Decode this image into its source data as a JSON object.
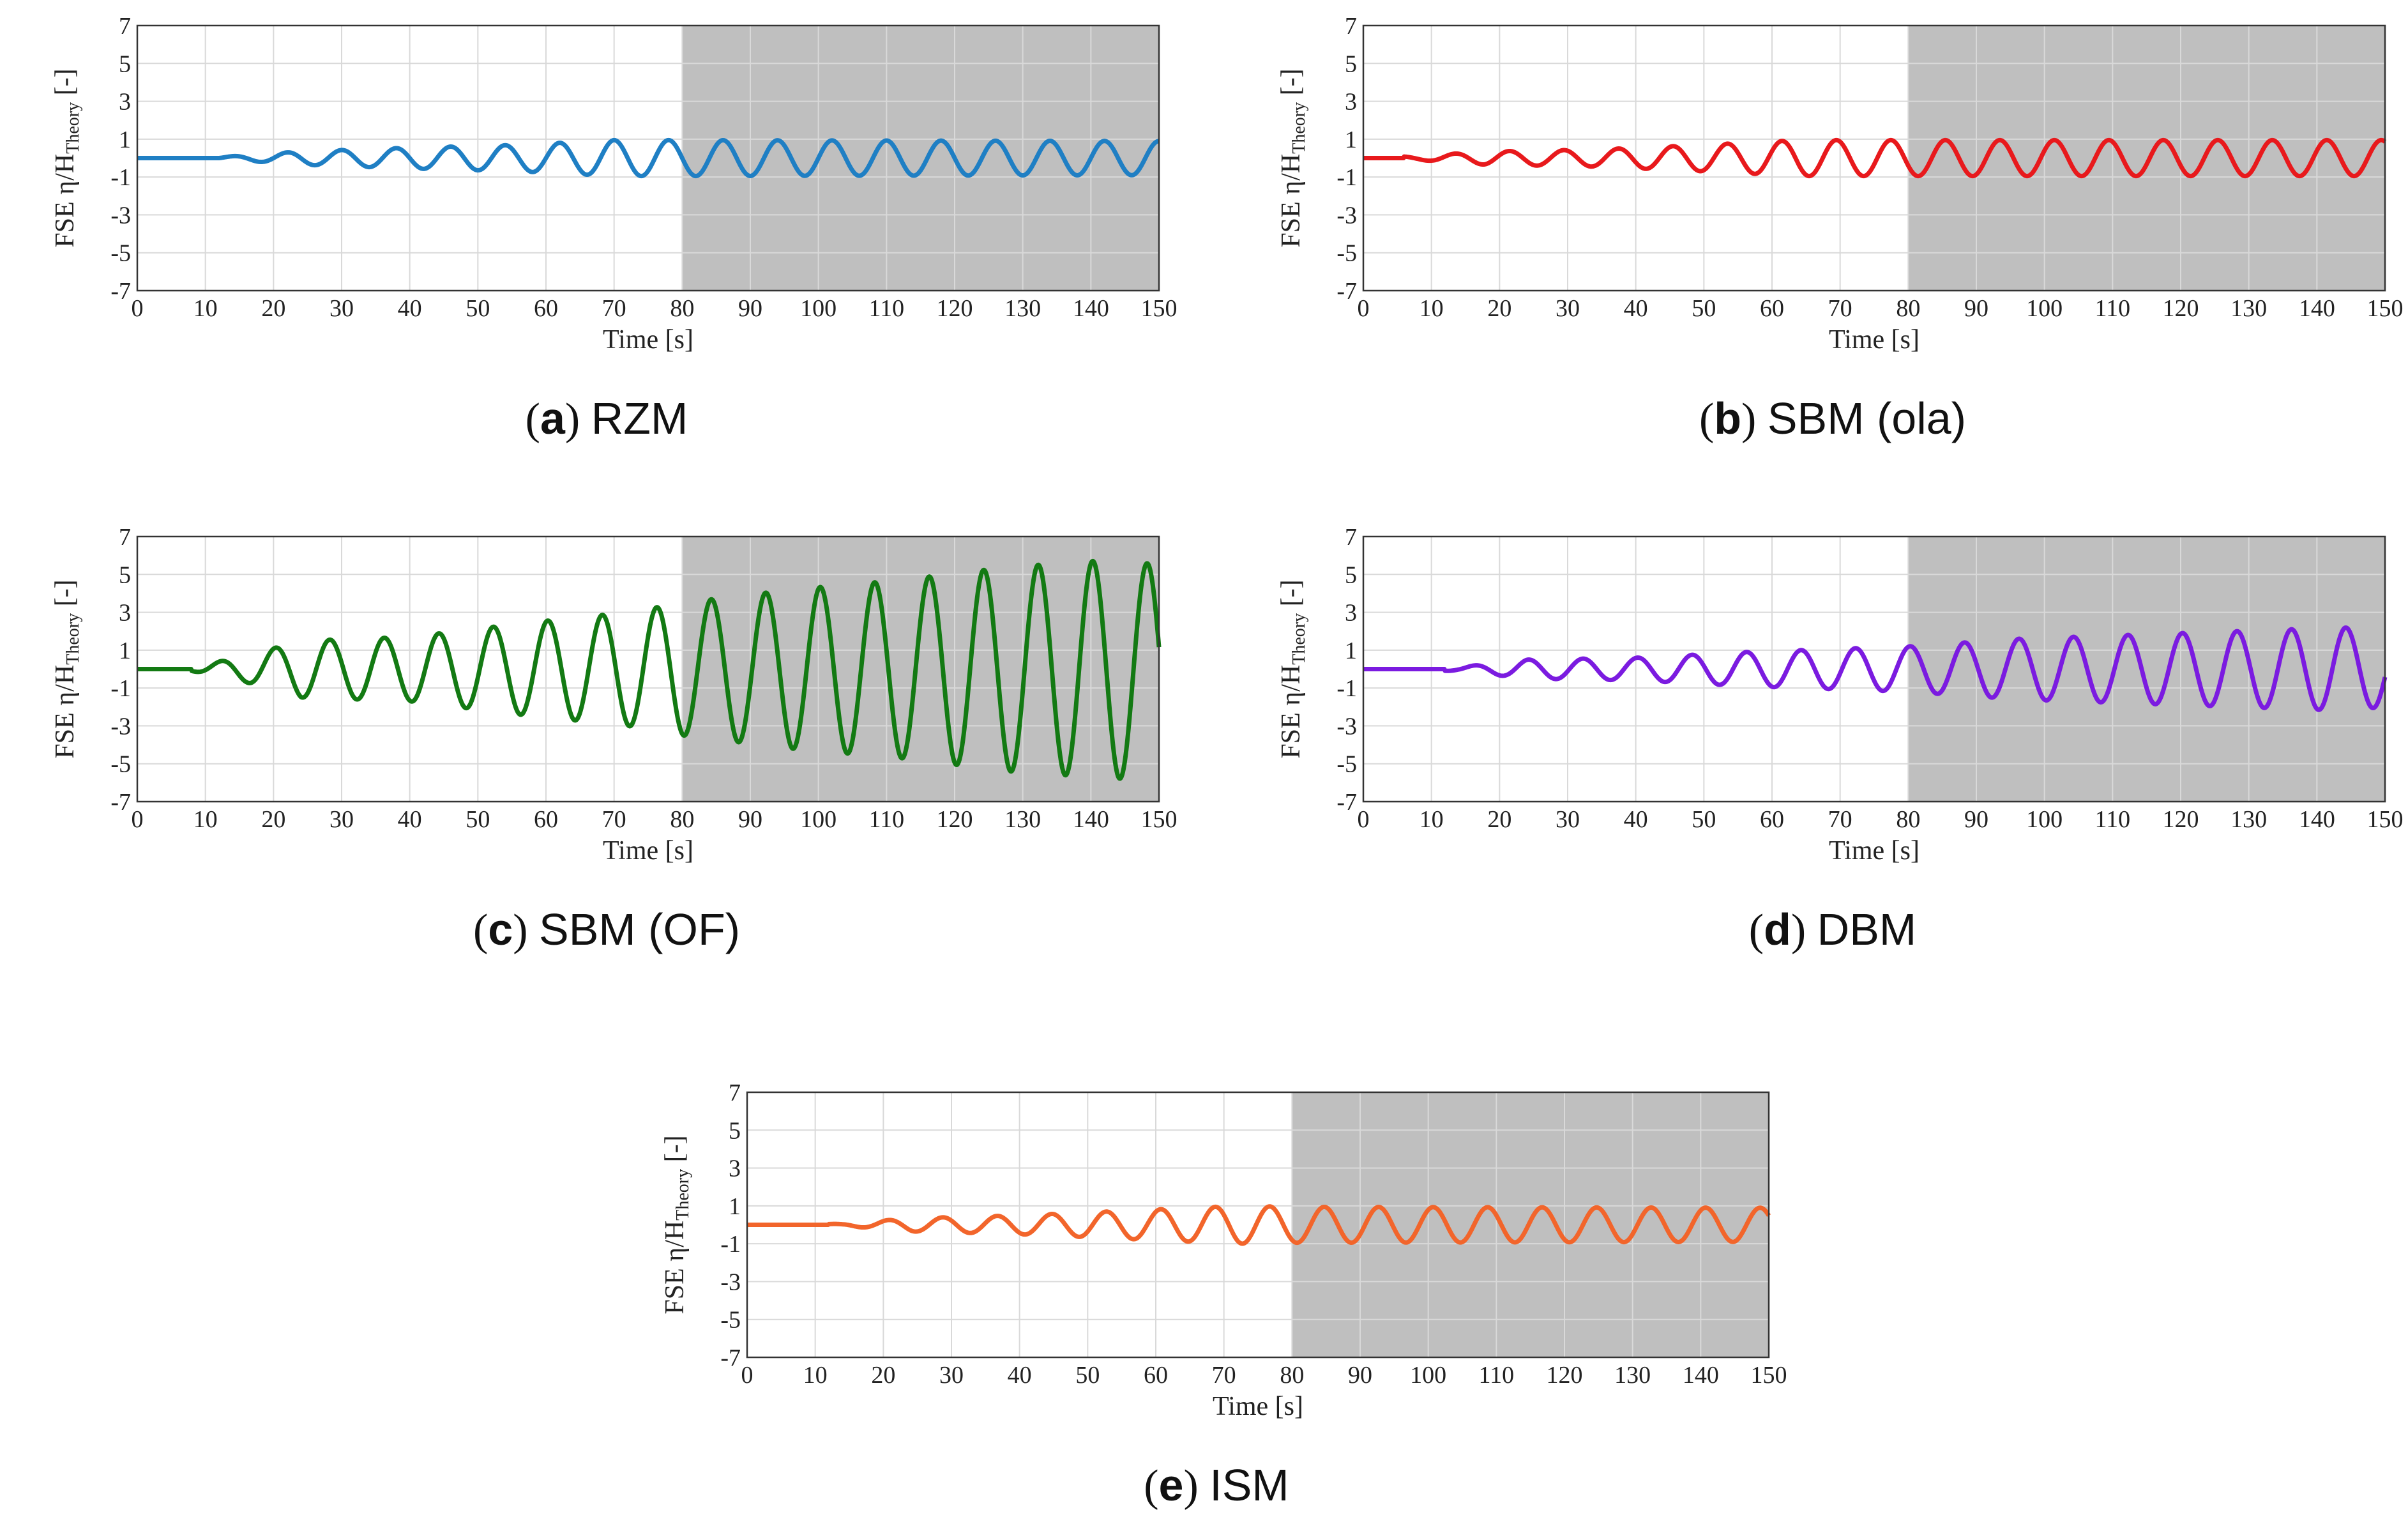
{
  "figure": {
    "xlabel": "Time [s]",
    "ylabel": "FSE η/H",
    "ylabel_sub": "Theory",
    "ylabel_unit": " [-]",
    "shaded_region": [
      80,
      150
    ]
  },
  "chart_data": [
    {
      "id": "a",
      "type": "line",
      "letter": "a",
      "title": "RZM",
      "color": "#1f7fc4",
      "xlim": [
        0,
        150
      ],
      "ylim": [
        -7,
        7
      ],
      "xticks": [
        0,
        10,
        20,
        30,
        40,
        50,
        60,
        70,
        80,
        90,
        100,
        110,
        120,
        130,
        140,
        150
      ],
      "yticks": [
        7,
        5,
        3,
        1,
        -1,
        -3,
        -5,
        -7
      ],
      "series": [
        {
          "name": "RZM",
          "period": 8.0,
          "phase": 0.0,
          "t_start": 12,
          "envelope": [
            [
              0,
              0
            ],
            [
              12,
              0.05
            ],
            [
              24,
              0.35
            ],
            [
              40,
              0.55
            ],
            [
              56,
              0.7
            ],
            [
              70,
              0.95
            ],
            [
              80,
              0.95
            ],
            [
              150,
              0.9
            ]
          ]
        }
      ]
    },
    {
      "id": "b",
      "type": "line",
      "letter": "b",
      "title": "SBM (ola)",
      "color": "#e8191c",
      "xlim": [
        0,
        150
      ],
      "ylim": [
        -7,
        7
      ],
      "xticks": [
        0,
        10,
        20,
        30,
        40,
        50,
        60,
        70,
        80,
        90,
        100,
        110,
        120,
        130,
        140,
        150
      ],
      "yticks": [
        7,
        5,
        3,
        1,
        -1,
        -3,
        -5,
        -7
      ],
      "series": [
        {
          "name": "SBM (ola)",
          "period": 8.0,
          "phase": 2.0,
          "t_start": 6,
          "envelope": [
            [
              0,
              0.05
            ],
            [
              8,
              0.1
            ],
            [
              18,
              0.35
            ],
            [
              34,
              0.45
            ],
            [
              50,
              0.7
            ],
            [
              64,
              0.95
            ],
            [
              80,
              0.95
            ],
            [
              150,
              0.95
            ]
          ]
        }
      ]
    },
    {
      "id": "c",
      "type": "line",
      "letter": "c",
      "title": "SBM (OF)",
      "color": "#137a13",
      "xlim": [
        0,
        150
      ],
      "ylim": [
        -7,
        7
      ],
      "xticks": [
        0,
        10,
        20,
        30,
        40,
        50,
        60,
        70,
        80,
        90,
        100,
        110,
        120,
        130,
        140,
        150
      ],
      "yticks": [
        7,
        5,
        3,
        1,
        -1,
        -3,
        -5,
        -7
      ],
      "series": [
        {
          "name": "SBM (OF)",
          "period": 8.0,
          "phase": 4.5,
          "t_start": 8,
          "envelope": [
            [
              0,
              0.1
            ],
            [
              8,
              0.1
            ],
            [
              16,
              0.7
            ],
            [
              24,
              1.5
            ],
            [
              40,
              1.7
            ],
            [
              56,
              2.4
            ],
            [
              72,
              3.0
            ],
            [
              80,
              3.5
            ],
            [
              96,
              4.2
            ],
            [
              112,
              4.7
            ],
            [
              128,
              5.4
            ],
            [
              144,
              5.8
            ],
            [
              150,
              5.5
            ]
          ]
        }
      ]
    },
    {
      "id": "d",
      "type": "line",
      "letter": "d",
      "title": "DBM",
      "color": "#7b1be0",
      "xlim": [
        0,
        150
      ],
      "ylim": [
        -7,
        7
      ],
      "xticks": [
        0,
        10,
        20,
        30,
        40,
        50,
        60,
        70,
        80,
        90,
        100,
        110,
        120,
        130,
        140,
        150
      ],
      "yticks": [
        7,
        5,
        3,
        1,
        -1,
        -3,
        -5,
        -7
      ],
      "series": [
        {
          "name": "DBM",
          "period": 8.0,
          "phase": 4.5,
          "t_start": 12,
          "envelope": [
            [
              0,
              0.05
            ],
            [
              14,
              0.1
            ],
            [
              24,
              0.5
            ],
            [
              40,
              0.6
            ],
            [
              56,
              0.9
            ],
            [
              72,
              1.1
            ],
            [
              80,
              1.2
            ],
            [
              96,
              1.6
            ],
            [
              112,
              1.8
            ],
            [
              128,
              2.0
            ],
            [
              144,
              2.2
            ],
            [
              150,
              2.0
            ]
          ]
        }
      ]
    },
    {
      "id": "e",
      "type": "line",
      "letter": "e",
      "title": "ISM",
      "color": "#f2652b",
      "xlim": [
        0,
        150
      ],
      "ylim": [
        -7,
        7
      ],
      "xticks": [
        0,
        10,
        20,
        30,
        40,
        50,
        60,
        70,
        80,
        90,
        100,
        110,
        120,
        130,
        140,
        150
      ],
      "yticks": [
        7,
        5,
        3,
        1,
        -1,
        -3,
        -5,
        -7
      ],
      "series": [
        {
          "name": "ISM",
          "period": 8.0,
          "phase": 1.0,
          "t_start": 12,
          "envelope": [
            [
              0,
              0.0
            ],
            [
              14,
              0.05
            ],
            [
              24,
              0.35
            ],
            [
              40,
              0.5
            ],
            [
              56,
              0.75
            ],
            [
              72,
              1.0
            ],
            [
              80,
              0.95
            ],
            [
              150,
              0.9
            ]
          ]
        }
      ]
    }
  ]
}
